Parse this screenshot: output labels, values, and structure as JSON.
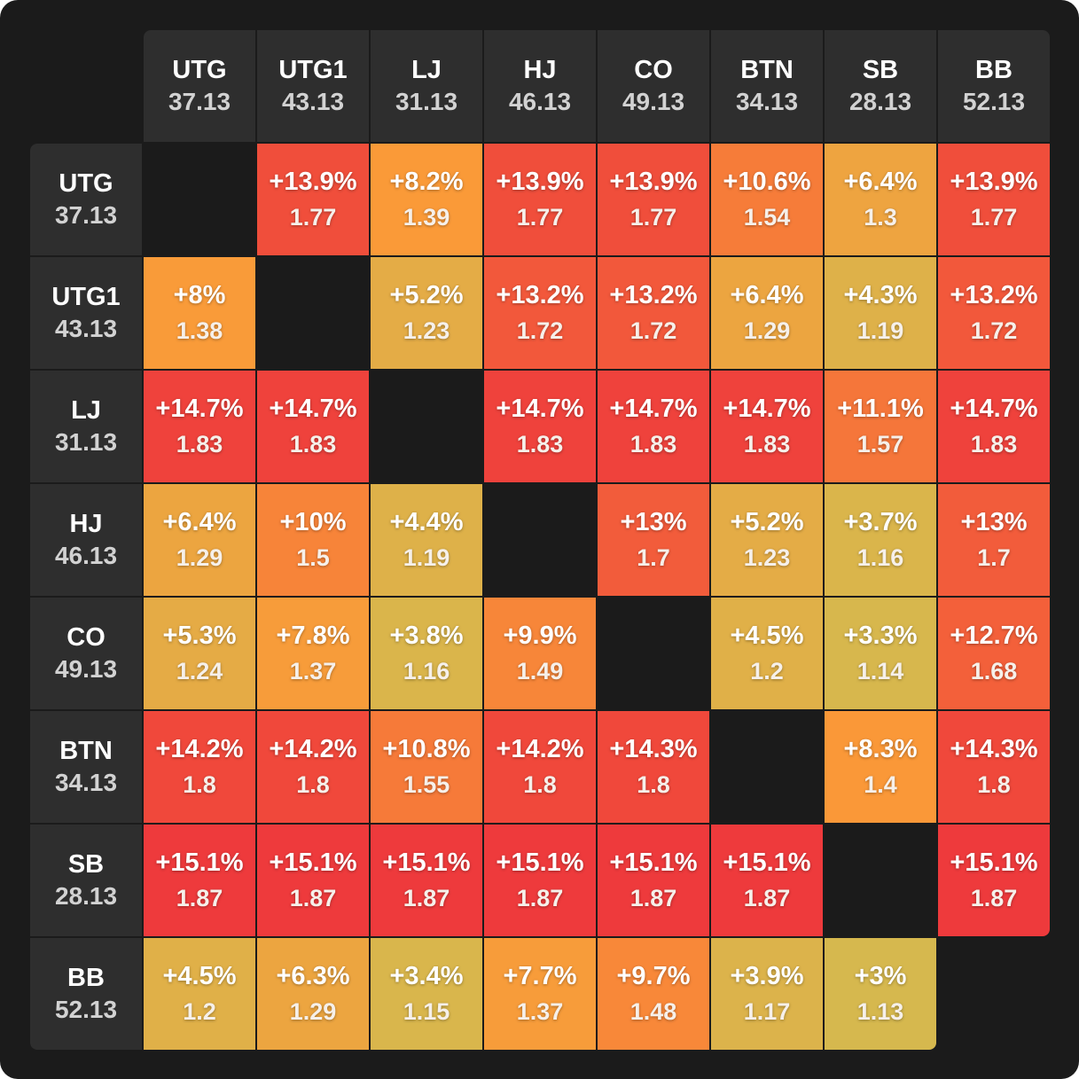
{
  "chart_data": {
    "type": "heatmap",
    "positions": [
      {
        "name": "UTG",
        "stack": "37.13"
      },
      {
        "name": "UTG1",
        "stack": "43.13"
      },
      {
        "name": "LJ",
        "stack": "31.13"
      },
      {
        "name": "HJ",
        "stack": "46.13"
      },
      {
        "name": "CO",
        "stack": "49.13"
      },
      {
        "name": "BTN",
        "stack": "34.13"
      },
      {
        "name": "SB",
        "stack": "28.13"
      },
      {
        "name": "BB",
        "stack": "52.13"
      }
    ],
    "cells": [
      [
        null,
        {
          "pct": "+13.9%",
          "ratio": "1.77"
        },
        {
          "pct": "+8.2%",
          "ratio": "1.39"
        },
        {
          "pct": "+13.9%",
          "ratio": "1.77"
        },
        {
          "pct": "+13.9%",
          "ratio": "1.77"
        },
        {
          "pct": "+10.6%",
          "ratio": "1.54"
        },
        {
          "pct": "+6.4%",
          "ratio": "1.3"
        },
        {
          "pct": "+13.9%",
          "ratio": "1.77"
        }
      ],
      [
        {
          "pct": "+8%",
          "ratio": "1.38"
        },
        null,
        {
          "pct": "+5.2%",
          "ratio": "1.23"
        },
        {
          "pct": "+13.2%",
          "ratio": "1.72"
        },
        {
          "pct": "+13.2%",
          "ratio": "1.72"
        },
        {
          "pct": "+6.4%",
          "ratio": "1.29"
        },
        {
          "pct": "+4.3%",
          "ratio": "1.19"
        },
        {
          "pct": "+13.2%",
          "ratio": "1.72"
        }
      ],
      [
        {
          "pct": "+14.7%",
          "ratio": "1.83"
        },
        {
          "pct": "+14.7%",
          "ratio": "1.83"
        },
        null,
        {
          "pct": "+14.7%",
          "ratio": "1.83"
        },
        {
          "pct": "+14.7%",
          "ratio": "1.83"
        },
        {
          "pct": "+14.7%",
          "ratio": "1.83"
        },
        {
          "pct": "+11.1%",
          "ratio": "1.57"
        },
        {
          "pct": "+14.7%",
          "ratio": "1.83"
        }
      ],
      [
        {
          "pct": "+6.4%",
          "ratio": "1.29"
        },
        {
          "pct": "+10%",
          "ratio": "1.5"
        },
        {
          "pct": "+4.4%",
          "ratio": "1.19"
        },
        null,
        {
          "pct": "+13%",
          "ratio": "1.7"
        },
        {
          "pct": "+5.2%",
          "ratio": "1.23"
        },
        {
          "pct": "+3.7%",
          "ratio": "1.16"
        },
        {
          "pct": "+13%",
          "ratio": "1.7"
        }
      ],
      [
        {
          "pct": "+5.3%",
          "ratio": "1.24"
        },
        {
          "pct": "+7.8%",
          "ratio": "1.37"
        },
        {
          "pct": "+3.8%",
          "ratio": "1.16"
        },
        {
          "pct": "+9.9%",
          "ratio": "1.49"
        },
        null,
        {
          "pct": "+4.5%",
          "ratio": "1.2"
        },
        {
          "pct": "+3.3%",
          "ratio": "1.14"
        },
        {
          "pct": "+12.7%",
          "ratio": "1.68"
        }
      ],
      [
        {
          "pct": "+14.2%",
          "ratio": "1.8"
        },
        {
          "pct": "+14.2%",
          "ratio": "1.8"
        },
        {
          "pct": "+10.8%",
          "ratio": "1.55"
        },
        {
          "pct": "+14.2%",
          "ratio": "1.8"
        },
        {
          "pct": "+14.3%",
          "ratio": "1.8"
        },
        null,
        {
          "pct": "+8.3%",
          "ratio": "1.4"
        },
        {
          "pct": "+14.3%",
          "ratio": "1.8"
        }
      ],
      [
        {
          "pct": "+15.1%",
          "ratio": "1.87"
        },
        {
          "pct": "+15.1%",
          "ratio": "1.87"
        },
        {
          "pct": "+15.1%",
          "ratio": "1.87"
        },
        {
          "pct": "+15.1%",
          "ratio": "1.87"
        },
        {
          "pct": "+15.1%",
          "ratio": "1.87"
        },
        {
          "pct": "+15.1%",
          "ratio": "1.87"
        },
        null,
        {
          "pct": "+15.1%",
          "ratio": "1.87"
        }
      ],
      [
        {
          "pct": "+4.5%",
          "ratio": "1.2"
        },
        {
          "pct": "+6.3%",
          "ratio": "1.29"
        },
        {
          "pct": "+3.4%",
          "ratio": "1.15"
        },
        {
          "pct": "+7.7%",
          "ratio": "1.37"
        },
        {
          "pct": "+9.7%",
          "ratio": "1.48"
        },
        {
          "pct": "+3.9%",
          "ratio": "1.17"
        },
        {
          "pct": "+3%",
          "ratio": "1.13"
        },
        null
      ]
    ],
    "color_scale": {
      "low": "#d6b84e",
      "mid": "#fa9a38",
      "high": "#ee3a3c"
    },
    "empty_color": "#1b1b1b",
    "header_color": "#2e2e2e"
  }
}
